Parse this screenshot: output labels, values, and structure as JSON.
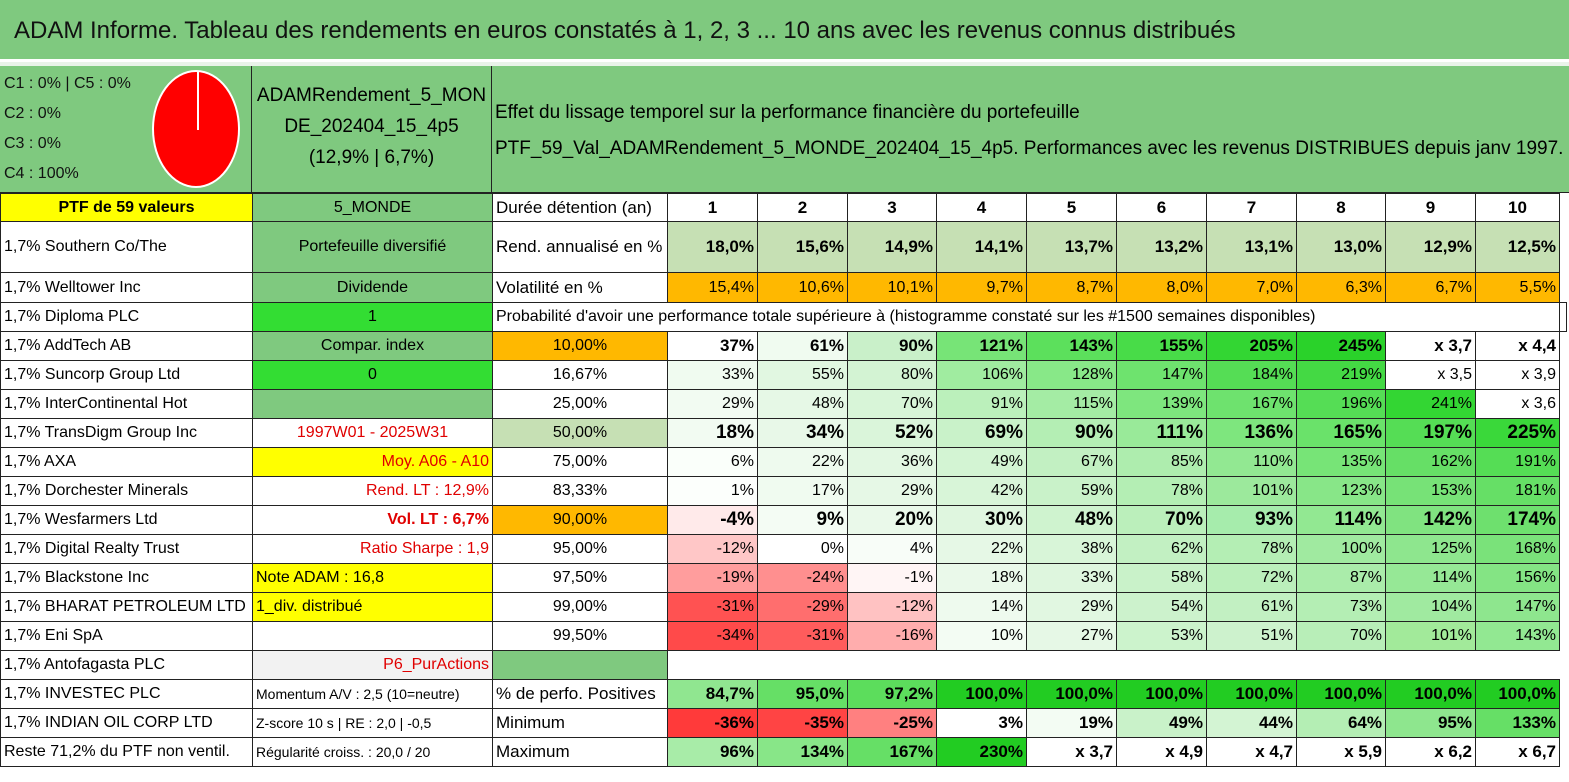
{
  "title": "ADAM Informe. Tableau des rendements en euros constatés à 1, 2, 3 ... 10 ans avec les revenus connus distribués",
  "allocation": {
    "c1c5": "C1 : 0% | C5 : 0%",
    "c2": "C2 : 0%",
    "c3": "C3 : 0%",
    "c4": "C4 : 100%",
    "pie_fraction_c4": 1.0,
    "pie_color": "#ff0000"
  },
  "portfolio": {
    "name_line1": "ADAMRendement_5_MON",
    "name_line2": "DE_202404_15_4p5",
    "name_line3": "(12,9% | 6,7%)"
  },
  "header_right": {
    "line1": "Effet du lissage temporel sur la performance financière du portefeuille",
    "line2": "PTF_59_Val_ADAMRendement_5_MONDE_202404_15_4p5. Performances avec les revenus DISTRIBUES depuis janv 1997."
  },
  "col1": [
    "PTF de 59 valeurs",
    "1,7% Southern Co/The",
    "1,7% Welltower Inc",
    "1,7% Diploma PLC",
    "1,7% AddTech AB",
    "1,7% Suncorp Group Ltd",
    "1,7% InterContinental Hot",
    "1,7% TransDigm Group Inc",
    "1,7% AXA",
    "1,7% Dorchester Minerals",
    "1,7% Wesfarmers Ltd",
    "1,7% Digital Realty Trust",
    "1,7% Blackstone Inc",
    "1,7% BHARAT PETROLEUM LTD",
    "1,7% Eni SpA",
    "1,7% Antofagasta PLC",
    "1,7% INVESTEC PLC",
    "1,7% INDIAN OIL CORP LTD",
    "Reste 71,2% du PTF non ventil."
  ],
  "col2": [
    "5_MONDE",
    "Portefeuille diversifié",
    "Dividende",
    "1",
    "Compar. index",
    "0",
    "",
    "1997W01 - 2025W31",
    "Moy. A06 - A10",
    "Rend. LT : 12,9%",
    "Vol. LT : 6,7%",
    "Ratio Sharpe : 1,9",
    "Note ADAM : 16,8",
    "1_div. distribué",
    "",
    "P6_PurActions",
    "Momentum A/V : 2,5 (10=neutre)",
    "Z-score 10 s | RE : 2,0 | -0,5",
    "Régularité croiss. : 20,0 / 20"
  ],
  "col3": [
    "Durée détention (an)",
    "Rend. annualisé en %",
    "Volatilité en %",
    "Probabilité d'avoir une performance totale supérieure à (histogramme constaté sur les #1500 semaines disponibles)",
    "10,00%",
    "16,67%",
    "25,00%",
    "50,00%",
    "75,00%",
    "83,33%",
    "90,00%",
    "95,00%",
    "97,50%",
    "99,00%",
    "99,50%",
    "",
    "% de perfo. Positives",
    "Minimum",
    "Maximum"
  ],
  "years": [
    "1",
    "2",
    "3",
    "4",
    "5",
    "6",
    "7",
    "8",
    "9",
    "10"
  ],
  "rend": [
    "18,0%",
    "15,6%",
    "14,9%",
    "14,1%",
    "13,7%",
    "13,2%",
    "13,1%",
    "13,0%",
    "12,9%",
    "12,5%"
  ],
  "vol": [
    "15,4%",
    "10,6%",
    "10,1%",
    "9,7%",
    "8,7%",
    "8,0%",
    "7,0%",
    "6,3%",
    "6,7%",
    "5,5%"
  ],
  "quantiles": [
    [
      "37%",
      "61%",
      "90%",
      "121%",
      "143%",
      "155%",
      "205%",
      "245%",
      "x 3,7",
      "x 4,4"
    ],
    [
      "33%",
      "55%",
      "80%",
      "106%",
      "128%",
      "147%",
      "184%",
      "219%",
      "x 3,5",
      "x 3,9"
    ],
    [
      "29%",
      "48%",
      "70%",
      "91%",
      "115%",
      "139%",
      "167%",
      "196%",
      "241%",
      "x 3,6"
    ],
    [
      "18%",
      "34%",
      "52%",
      "69%",
      "90%",
      "111%",
      "136%",
      "165%",
      "197%",
      "225%"
    ],
    [
      "6%",
      "22%",
      "36%",
      "49%",
      "67%",
      "85%",
      "110%",
      "135%",
      "162%",
      "191%"
    ],
    [
      "1%",
      "17%",
      "29%",
      "42%",
      "59%",
      "78%",
      "101%",
      "123%",
      "153%",
      "181%"
    ],
    [
      "-4%",
      "9%",
      "20%",
      "30%",
      "48%",
      "70%",
      "93%",
      "114%",
      "142%",
      "174%"
    ],
    [
      "-12%",
      "0%",
      "4%",
      "22%",
      "38%",
      "62%",
      "78%",
      "100%",
      "125%",
      "168%"
    ],
    [
      "-19%",
      "-24%",
      "-1%",
      "18%",
      "33%",
      "58%",
      "72%",
      "87%",
      "114%",
      "156%"
    ],
    [
      "-31%",
      "-29%",
      "-12%",
      "14%",
      "29%",
      "54%",
      "61%",
      "73%",
      "104%",
      "147%"
    ],
    [
      "-34%",
      "-31%",
      "-16%",
      "10%",
      "27%",
      "53%",
      "51%",
      "70%",
      "101%",
      "143%"
    ]
  ],
  "positives": [
    "84,7%",
    "95,0%",
    "97,2%",
    "100,0%",
    "100,0%",
    "100,0%",
    "100,0%",
    "100,0%",
    "100,0%",
    "100,0%"
  ],
  "minimum": [
    "-36%",
    "-35%",
    "-25%",
    "3%",
    "19%",
    "49%",
    "44%",
    "64%",
    "95%",
    "133%"
  ],
  "maximum": [
    "96%",
    "134%",
    "167%",
    "230%",
    "x 3,7",
    "x 4,9",
    "x 4,7",
    "x 5,9",
    "x 6,2",
    "x 6,7"
  ],
  "colors": {
    "header_green": "#7fc97f",
    "bright_green": "#33dd33",
    "yellow": "#ffff00",
    "orange": "#ffb800",
    "red_text": "#e00000"
  }
}
